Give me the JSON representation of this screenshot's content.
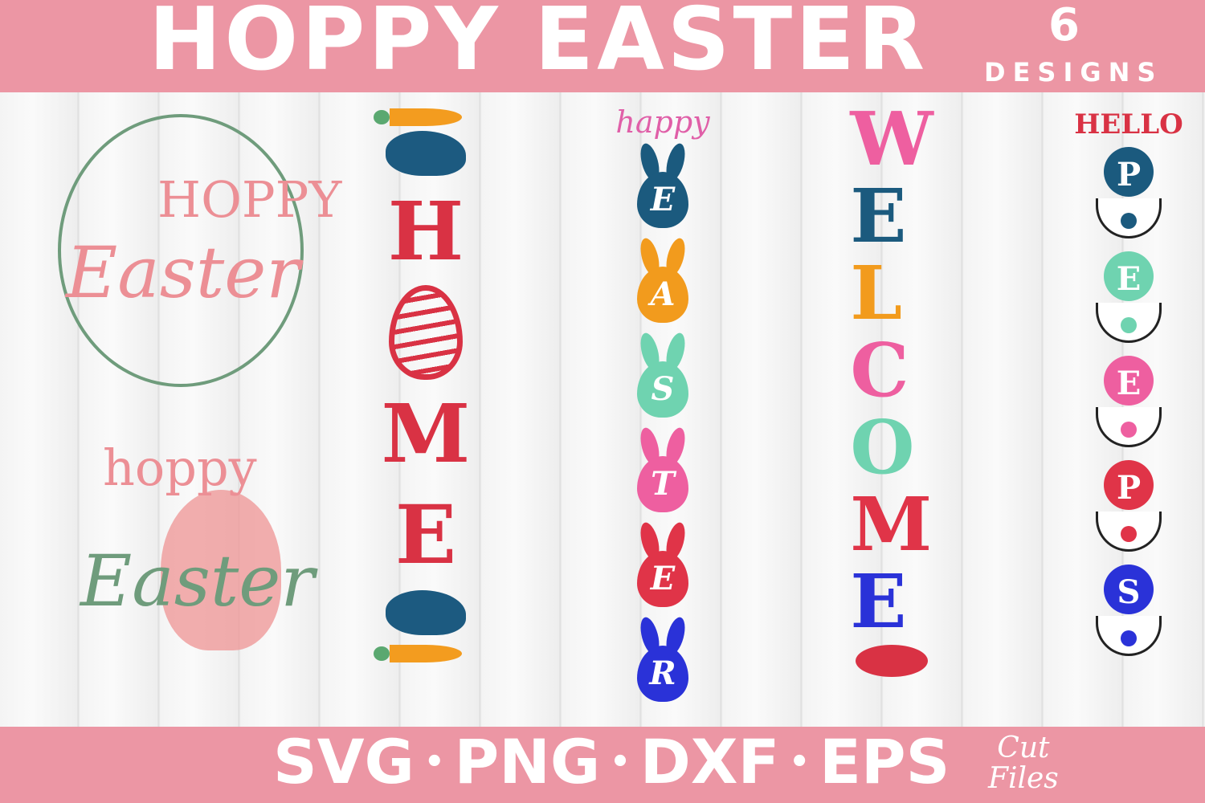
{
  "header": {
    "title": "HOPPY EASTER",
    "count": "6",
    "count_label": "DESIGNS"
  },
  "footer": {
    "formats": [
      "SVG",
      "PNG",
      "DXF",
      "EPS"
    ],
    "separator": "•",
    "tag_line1": "Cut",
    "tag_line2": "Files"
  },
  "designs": {
    "wreath1": {
      "word1": "HOPPY",
      "word2": "Easter"
    },
    "wreath2": {
      "word1": "hoppy",
      "word2": "Easter"
    },
    "home": {
      "letters": [
        "H",
        "M",
        "E"
      ]
    },
    "happy_easter": {
      "top": "happy",
      "letters": [
        {
          "ch": "E",
          "color": "#1b5a7e"
        },
        {
          "ch": "A",
          "color": "#f29b1d"
        },
        {
          "ch": "S",
          "color": "#6fd3b0"
        },
        {
          "ch": "T",
          "color": "#ee5fa0"
        },
        {
          "ch": "E",
          "color": "#e03448"
        },
        {
          "ch": "R",
          "color": "#2a32d8"
        }
      ]
    },
    "welcome": {
      "letters": [
        {
          "ch": "W",
          "color": "#ee5fa0"
        },
        {
          "ch": "E",
          "color": "#1b5a7e"
        },
        {
          "ch": "L",
          "color": "#f29b1d"
        },
        {
          "ch": "C",
          "color": "#ee5fa0"
        },
        {
          "ch": "O",
          "color": "#6fd3b0"
        },
        {
          "ch": "M",
          "color": "#e03448"
        },
        {
          "ch": "E",
          "color": "#2a32d8"
        }
      ]
    },
    "hello_peeps": {
      "top": "HELLO",
      "letters": [
        {
          "ch": "P",
          "color": "#1b5a7e"
        },
        {
          "ch": "E",
          "color": "#6fd3b0"
        },
        {
          "ch": "E",
          "color": "#ee5fa0"
        },
        {
          "ch": "P",
          "color": "#e03448"
        },
        {
          "ch": "S",
          "color": "#2a32d8"
        }
      ]
    }
  },
  "colors": {
    "banner": "#ec96a4",
    "pink": "#ec8f95",
    "green": "#6f9c7c",
    "red": "#d93244"
  }
}
